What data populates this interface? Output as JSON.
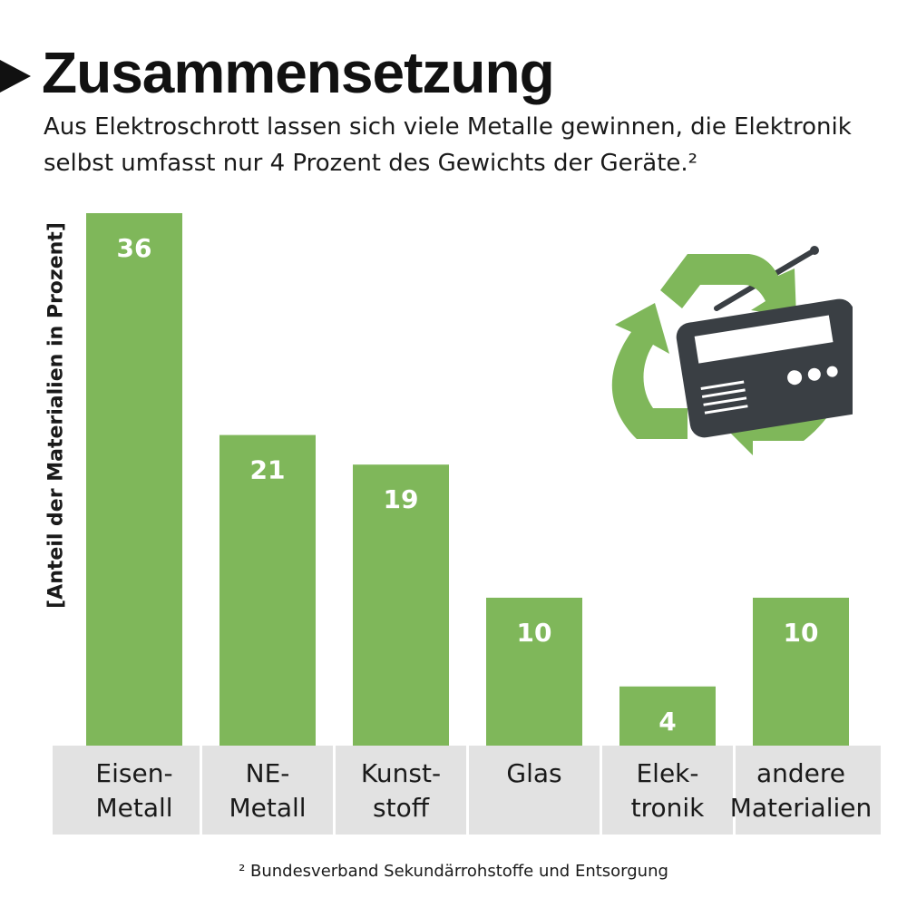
{
  "header": {
    "title": "Zusammensetzung",
    "subtitle": "Aus Elektroschrott lassen sich viele Metalle gewinnen, die Elektronik selbst umfasst nur 4 Prozent des Gewichts der Geräte.²"
  },
  "footnote": "² Bundesverband Sekundärrohstoffe und Entsorgung",
  "colors": {
    "bar": "#7fb75a",
    "category_band": "#e2e2e2",
    "text_dark": "#1a1a1a",
    "value_label": "#ffffff",
    "radio_body": "#3a3f44"
  },
  "illustration": {
    "icon": "recycling-radio-icon"
  },
  "chart_data": {
    "type": "bar",
    "title": "Zusammensetzung",
    "xlabel": "",
    "ylabel": "[Anteil der Materialien in Prozent]",
    "ylim": [
      0,
      36
    ],
    "grid": false,
    "categories": [
      [
        "Eisen-",
        "Metall"
      ],
      [
        "NE-",
        "Metall"
      ],
      [
        "Kunst-",
        "stoff"
      ],
      [
        "Glas"
      ],
      [
        "Elek-",
        "tronik"
      ],
      [
        "andere",
        "Materialien"
      ]
    ],
    "values": [
      36,
      21,
      19,
      10,
      4,
      10
    ]
  }
}
